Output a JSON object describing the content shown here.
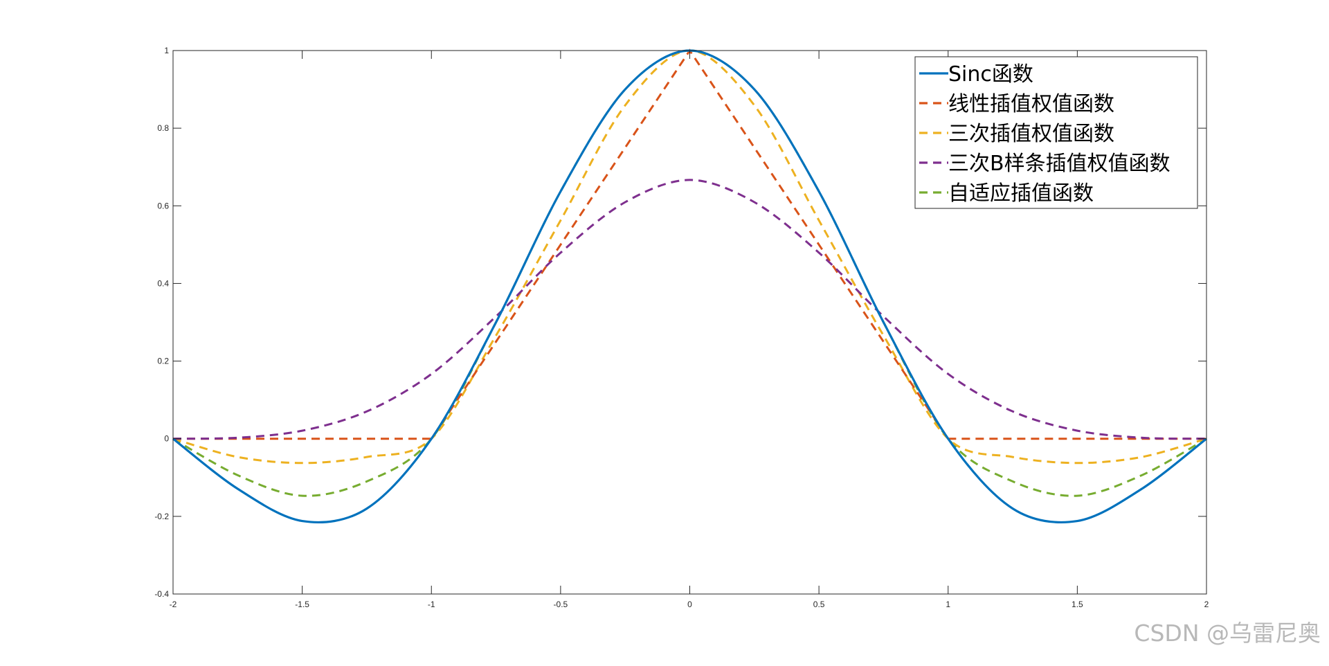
{
  "chart_data": {
    "type": "line",
    "title": "",
    "xlabel": "",
    "ylabel": "",
    "xlim": [
      -2,
      2
    ],
    "ylim": [
      -0.4,
      1
    ],
    "xticks": [
      -2,
      -1.5,
      -1,
      -0.5,
      0,
      0.5,
      1,
      1.5,
      2
    ],
    "xtick_labels": [
      "-2",
      "-1.5",
      "-1",
      "-0.5",
      "0",
      "0.5",
      "1",
      "1.5",
      "2"
    ],
    "yticks": [
      -0.4,
      -0.2,
      0,
      0.2,
      0.4,
      0.6,
      0.8,
      1
    ],
    "ytick_labels": [
      "-0.4",
      "-0.2",
      "0",
      "0.2",
      "0.4",
      "0.6",
      "0.8",
      "1"
    ],
    "grid": false,
    "legend_position": "top-right",
    "x": [
      -2,
      -1.75,
      -1.5,
      -1.25,
      -1,
      -0.75,
      -0.5,
      -0.25,
      0,
      0.25,
      0.5,
      0.75,
      1,
      1.25,
      1.5,
      1.75,
      2
    ],
    "series": [
      {
        "name": "Sinc函数",
        "color": "#0072BD",
        "style": "solid",
        "values": [
          0,
          -0.129,
          -0.212,
          -0.18,
          0,
          0.3,
          0.637,
          0.9,
          1,
          0.9,
          0.637,
          0.3,
          0,
          -0.18,
          -0.212,
          -0.129,
          0
        ]
      },
      {
        "name": "线性插值权值函数",
        "color": "#D95319",
        "style": "dashed",
        "values": [
          0,
          0,
          0,
          0,
          0,
          0.25,
          0.5,
          0.75,
          1,
          0.75,
          0.5,
          0.25,
          0,
          0,
          0,
          0,
          0
        ]
      },
      {
        "name": "三次插值权值函数",
        "color": "#EDB120",
        "style": "dashed",
        "values": [
          0,
          -0.047,
          -0.0625,
          -0.047,
          0,
          0.266,
          0.5625,
          0.859,
          1,
          0.859,
          0.5625,
          0.266,
          0,
          -0.047,
          -0.0625,
          -0.047,
          0
        ]
      },
      {
        "name": "三次B样条插值权值函数",
        "color": "#7E2F8E",
        "style": "dashed",
        "values": [
          0,
          0.0026,
          0.0208,
          0.0703,
          0.1667,
          0.3151,
          0.4792,
          0.6094,
          0.6667,
          0.6094,
          0.4792,
          0.3151,
          0.1667,
          0.0703,
          0.0208,
          0.0026,
          0
        ]
      },
      {
        "name": "自适应插值函数",
        "color": "#77AC30",
        "style": "dashed",
        "values": [
          0,
          -0.094,
          -0.147,
          -0.11,
          0,
          0.3,
          0.637,
          0.9,
          1,
          0.9,
          0.637,
          0.3,
          0,
          -0.11,
          -0.147,
          -0.094,
          0
        ]
      }
    ]
  },
  "watermark": "CSDN @乌雷尼奥"
}
